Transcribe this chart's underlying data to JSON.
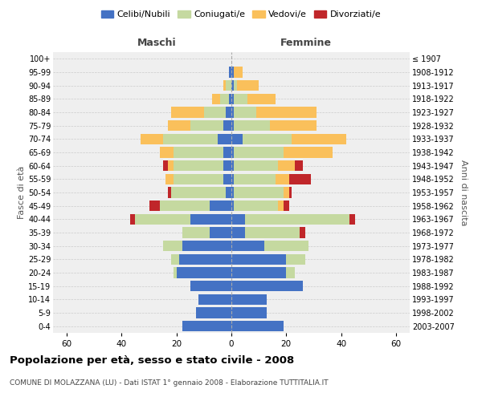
{
  "age_groups": [
    "0-4",
    "5-9",
    "10-14",
    "15-19",
    "20-24",
    "25-29",
    "30-34",
    "35-39",
    "40-44",
    "45-49",
    "50-54",
    "55-59",
    "60-64",
    "65-69",
    "70-74",
    "75-79",
    "80-84",
    "85-89",
    "90-94",
    "95-99",
    "100+"
  ],
  "birth_years": [
    "2003-2007",
    "1998-2002",
    "1993-1997",
    "1988-1992",
    "1983-1987",
    "1978-1982",
    "1973-1977",
    "1968-1972",
    "1963-1967",
    "1958-1962",
    "1953-1957",
    "1948-1952",
    "1943-1947",
    "1938-1942",
    "1933-1937",
    "1928-1932",
    "1923-1927",
    "1918-1922",
    "1913-1917",
    "1908-1912",
    "≤ 1907"
  ],
  "male": {
    "celibi": [
      18,
      13,
      12,
      15,
      20,
      19,
      18,
      8,
      15,
      8,
      2,
      3,
      3,
      3,
      5,
      3,
      2,
      1,
      0,
      1,
      0
    ],
    "coniugati": [
      0,
      0,
      0,
      0,
      1,
      3,
      7,
      10,
      20,
      18,
      20,
      18,
      18,
      18,
      20,
      12,
      8,
      3,
      2,
      0,
      0
    ],
    "vedovi": [
      0,
      0,
      0,
      0,
      0,
      0,
      0,
      0,
      0,
      0,
      0,
      3,
      2,
      5,
      8,
      8,
      12,
      3,
      1,
      0,
      0
    ],
    "divorziati": [
      0,
      0,
      0,
      0,
      0,
      0,
      0,
      0,
      2,
      4,
      1,
      0,
      2,
      0,
      0,
      0,
      0,
      0,
      0,
      0,
      0
    ]
  },
  "female": {
    "nubili": [
      19,
      13,
      13,
      26,
      20,
      20,
      12,
      5,
      5,
      1,
      1,
      1,
      1,
      1,
      4,
      1,
      1,
      1,
      1,
      1,
      0
    ],
    "coniugate": [
      0,
      0,
      0,
      0,
      3,
      7,
      16,
      20,
      38,
      16,
      18,
      15,
      16,
      18,
      18,
      13,
      8,
      5,
      1,
      0,
      0
    ],
    "vedove": [
      0,
      0,
      0,
      0,
      0,
      0,
      0,
      0,
      0,
      2,
      2,
      5,
      6,
      18,
      20,
      17,
      22,
      10,
      8,
      3,
      0
    ],
    "divorziate": [
      0,
      0,
      0,
      0,
      0,
      0,
      0,
      2,
      2,
      2,
      1,
      8,
      3,
      0,
      0,
      0,
      0,
      0,
      0,
      0,
      0
    ]
  },
  "colors": {
    "celibi": "#4472C4",
    "coniugati": "#C5D9A0",
    "vedovi": "#FAC05B",
    "divorziati": "#C0262A"
  },
  "xlim": 65,
  "title": "Popolazione per età, sesso e stato civile - 2008",
  "subtitle": "COMUNE DI MOLAZZANA (LU) - Dati ISTAT 1° gennaio 2008 - Elaborazione TUTTITALIA.IT",
  "ylabel_left": "Fasce di età",
  "ylabel_right": "Anni di nascita",
  "xlabel_left": "Maschi",
  "xlabel_right": "Femmine",
  "bg_color": "#efefef",
  "grid_color": "#cccccc"
}
